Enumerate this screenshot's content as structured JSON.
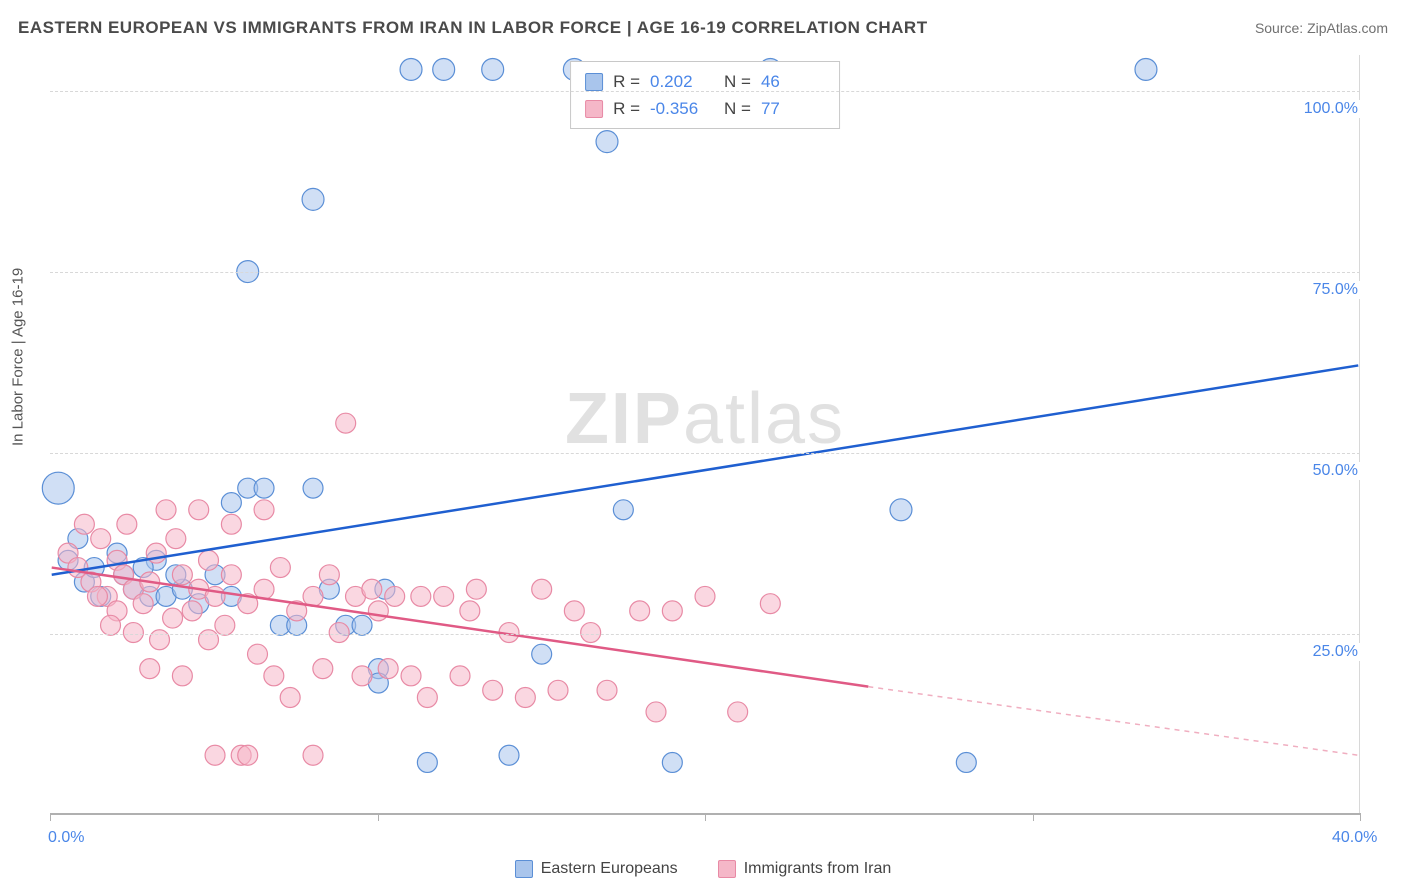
{
  "title": "EASTERN EUROPEAN VS IMMIGRANTS FROM IRAN IN LABOR FORCE | AGE 16-19 CORRELATION CHART",
  "source": "Source: ZipAtlas.com",
  "yaxis_title": "In Labor Force | Age 16-19",
  "watermark_bold": "ZIP",
  "watermark_rest": "atlas",
  "chart": {
    "type": "scatter",
    "xlim": [
      0,
      40
    ],
    "ylim": [
      0,
      105
    ],
    "xticks": [
      0,
      10,
      20,
      30,
      40
    ],
    "xlabels": {
      "0": "0.0%",
      "40": "40.0%"
    },
    "yticks": [
      25,
      50,
      75,
      100
    ],
    "ylabels": {
      "25": "25.0%",
      "50": "50.0%",
      "75": "75.0%",
      "100": "100.0%"
    },
    "grid_color": "#d8d8d8",
    "axis_color": "#b0b0b0",
    "background_color": "#ffffff",
    "label_color": "#4a86e8",
    "label_fontsize": 16
  },
  "series": [
    {
      "key": "blue",
      "name": "Eastern Europeans",
      "color_stroke": "#5b8fd6",
      "color_fill": "#a9c5ec",
      "fill_opacity": 0.55,
      "marker_r": 10,
      "R": "0.202",
      "N": "46",
      "trend": {
        "x1": 0,
        "y1": 33,
        "x2": 40,
        "y2": 62,
        "color": "#1f5fd0",
        "width": 2.5
      },
      "points": [
        [
          0.2,
          45,
          16
        ],
        [
          0.5,
          35,
          10
        ],
        [
          0.8,
          38,
          10
        ],
        [
          1.0,
          32,
          10
        ],
        [
          1.3,
          34,
          10
        ],
        [
          1.5,
          30,
          10
        ],
        [
          2.0,
          36,
          10
        ],
        [
          2.2,
          33,
          10
        ],
        [
          2.5,
          31,
          10
        ],
        [
          3.0,
          30,
          10
        ],
        [
          3.2,
          35,
          10
        ],
        [
          3.5,
          30,
          10
        ],
        [
          4.0,
          31,
          10
        ],
        [
          4.5,
          29,
          10
        ],
        [
          5.0,
          33,
          10
        ],
        [
          5.5,
          43,
          10
        ],
        [
          6.0,
          45,
          10
        ],
        [
          6.5,
          45,
          10
        ],
        [
          7.0,
          26,
          10
        ],
        [
          7.5,
          26,
          10
        ],
        [
          8.0,
          85,
          11
        ],
        [
          8.0,
          45,
          10
        ],
        [
          8.5,
          31,
          10
        ],
        [
          9.0,
          26,
          10
        ],
        [
          9.5,
          26,
          10
        ],
        [
          10.0,
          20,
          10
        ],
        [
          10.0,
          18,
          10
        ],
        [
          10.2,
          31,
          10
        ],
        [
          11.0,
          103,
          11
        ],
        [
          11.5,
          7,
          10
        ],
        [
          12.0,
          103,
          11
        ],
        [
          13.5,
          103,
          11
        ],
        [
          14.0,
          8,
          10
        ],
        [
          15.0,
          22,
          10
        ],
        [
          16.0,
          103,
          11
        ],
        [
          17.0,
          93,
          11
        ],
        [
          17.5,
          42,
          10
        ],
        [
          19.0,
          7,
          10
        ],
        [
          22.0,
          103,
          11
        ],
        [
          26.0,
          42,
          11
        ],
        [
          28.0,
          7,
          10
        ],
        [
          33.5,
          103,
          11
        ],
        [
          6.0,
          75,
          11
        ],
        [
          5.5,
          30,
          10
        ],
        [
          3.8,
          33,
          10
        ],
        [
          2.8,
          34,
          10
        ]
      ]
    },
    {
      "key": "pink",
      "name": "Immigrants from Iran",
      "color_stroke": "#e88aa5",
      "color_fill": "#f5b7c8",
      "fill_opacity": 0.55,
      "marker_r": 10,
      "R": "-0.356",
      "N": "77",
      "trend_solid": {
        "x1": 0,
        "y1": 34,
        "x2": 25,
        "y2": 17.5,
        "color": "#e05a85",
        "width": 2.5
      },
      "trend_dash": {
        "x1": 25,
        "y1": 17.5,
        "x2": 40,
        "y2": 8,
        "color": "#f0aec0",
        "width": 1.5
      },
      "points": [
        [
          0.5,
          36,
          10
        ],
        [
          0.8,
          34,
          10
        ],
        [
          1.0,
          40,
          10
        ],
        [
          1.2,
          32,
          10
        ],
        [
          1.5,
          38,
          10
        ],
        [
          1.7,
          30,
          10
        ],
        [
          2.0,
          35,
          10
        ],
        [
          2.0,
          28,
          10
        ],
        [
          2.2,
          33,
          10
        ],
        [
          2.5,
          31,
          10
        ],
        [
          2.5,
          25,
          10
        ],
        [
          2.8,
          29,
          10
        ],
        [
          3.0,
          32,
          10
        ],
        [
          3.0,
          20,
          10
        ],
        [
          3.2,
          36,
          10
        ],
        [
          3.3,
          24,
          10
        ],
        [
          3.5,
          42,
          10
        ],
        [
          3.7,
          27,
          10
        ],
        [
          4.0,
          33,
          10
        ],
        [
          4.0,
          19,
          10
        ],
        [
          4.3,
          28,
          10
        ],
        [
          4.5,
          31,
          10
        ],
        [
          4.8,
          24,
          10
        ],
        [
          5.0,
          30,
          10
        ],
        [
          5.0,
          8,
          10
        ],
        [
          5.3,
          26,
          10
        ],
        [
          5.5,
          33,
          10
        ],
        [
          5.8,
          8,
          10
        ],
        [
          6.0,
          29,
          10
        ],
        [
          6.3,
          22,
          10
        ],
        [
          6.5,
          31,
          10
        ],
        [
          6.8,
          19,
          10
        ],
        [
          7.0,
          34,
          10
        ],
        [
          7.3,
          16,
          10
        ],
        [
          7.5,
          28,
          10
        ],
        [
          8.0,
          30,
          10
        ],
        [
          8.0,
          8,
          10
        ],
        [
          8.3,
          20,
          10
        ],
        [
          8.5,
          33,
          10
        ],
        [
          8.8,
          25,
          10
        ],
        [
          9.0,
          54,
          10
        ],
        [
          9.3,
          30,
          10
        ],
        [
          9.5,
          19,
          10
        ],
        [
          10.0,
          28,
          10
        ],
        [
          10.3,
          20,
          10
        ],
        [
          10.5,
          30,
          10
        ],
        [
          11.0,
          19,
          10
        ],
        [
          11.3,
          30,
          10
        ],
        [
          11.5,
          16,
          10
        ],
        [
          12.0,
          30,
          10
        ],
        [
          12.5,
          19,
          10
        ],
        [
          13.0,
          31,
          10
        ],
        [
          13.5,
          17,
          10
        ],
        [
          14.0,
          25,
          10
        ],
        [
          14.5,
          16,
          10
        ],
        [
          15.0,
          31,
          10
        ],
        [
          15.5,
          17,
          10
        ],
        [
          16.0,
          28,
          10
        ],
        [
          16.5,
          25,
          10
        ],
        [
          17.0,
          17,
          10
        ],
        [
          18.0,
          28,
          10
        ],
        [
          18.5,
          14,
          10
        ],
        [
          19.0,
          28,
          10
        ],
        [
          20.0,
          30,
          10
        ],
        [
          21.0,
          14,
          10
        ],
        [
          22.0,
          29,
          10
        ],
        [
          4.5,
          42,
          10
        ],
        [
          5.5,
          40,
          10
        ],
        [
          6.5,
          42,
          10
        ],
        [
          3.8,
          38,
          10
        ],
        [
          2.3,
          40,
          10
        ],
        [
          1.8,
          26,
          10
        ],
        [
          1.4,
          30,
          10
        ],
        [
          4.8,
          35,
          10
        ],
        [
          6.0,
          8,
          10
        ],
        [
          9.8,
          31,
          10
        ],
        [
          12.8,
          28,
          10
        ]
      ]
    }
  ],
  "bottom_legend": [
    {
      "label": "Eastern Europeans",
      "fill": "#a9c5ec",
      "stroke": "#5b8fd6"
    },
    {
      "label": "Immigrants from Iran",
      "fill": "#f5b7c8",
      "stroke": "#e88aa5"
    }
  ]
}
